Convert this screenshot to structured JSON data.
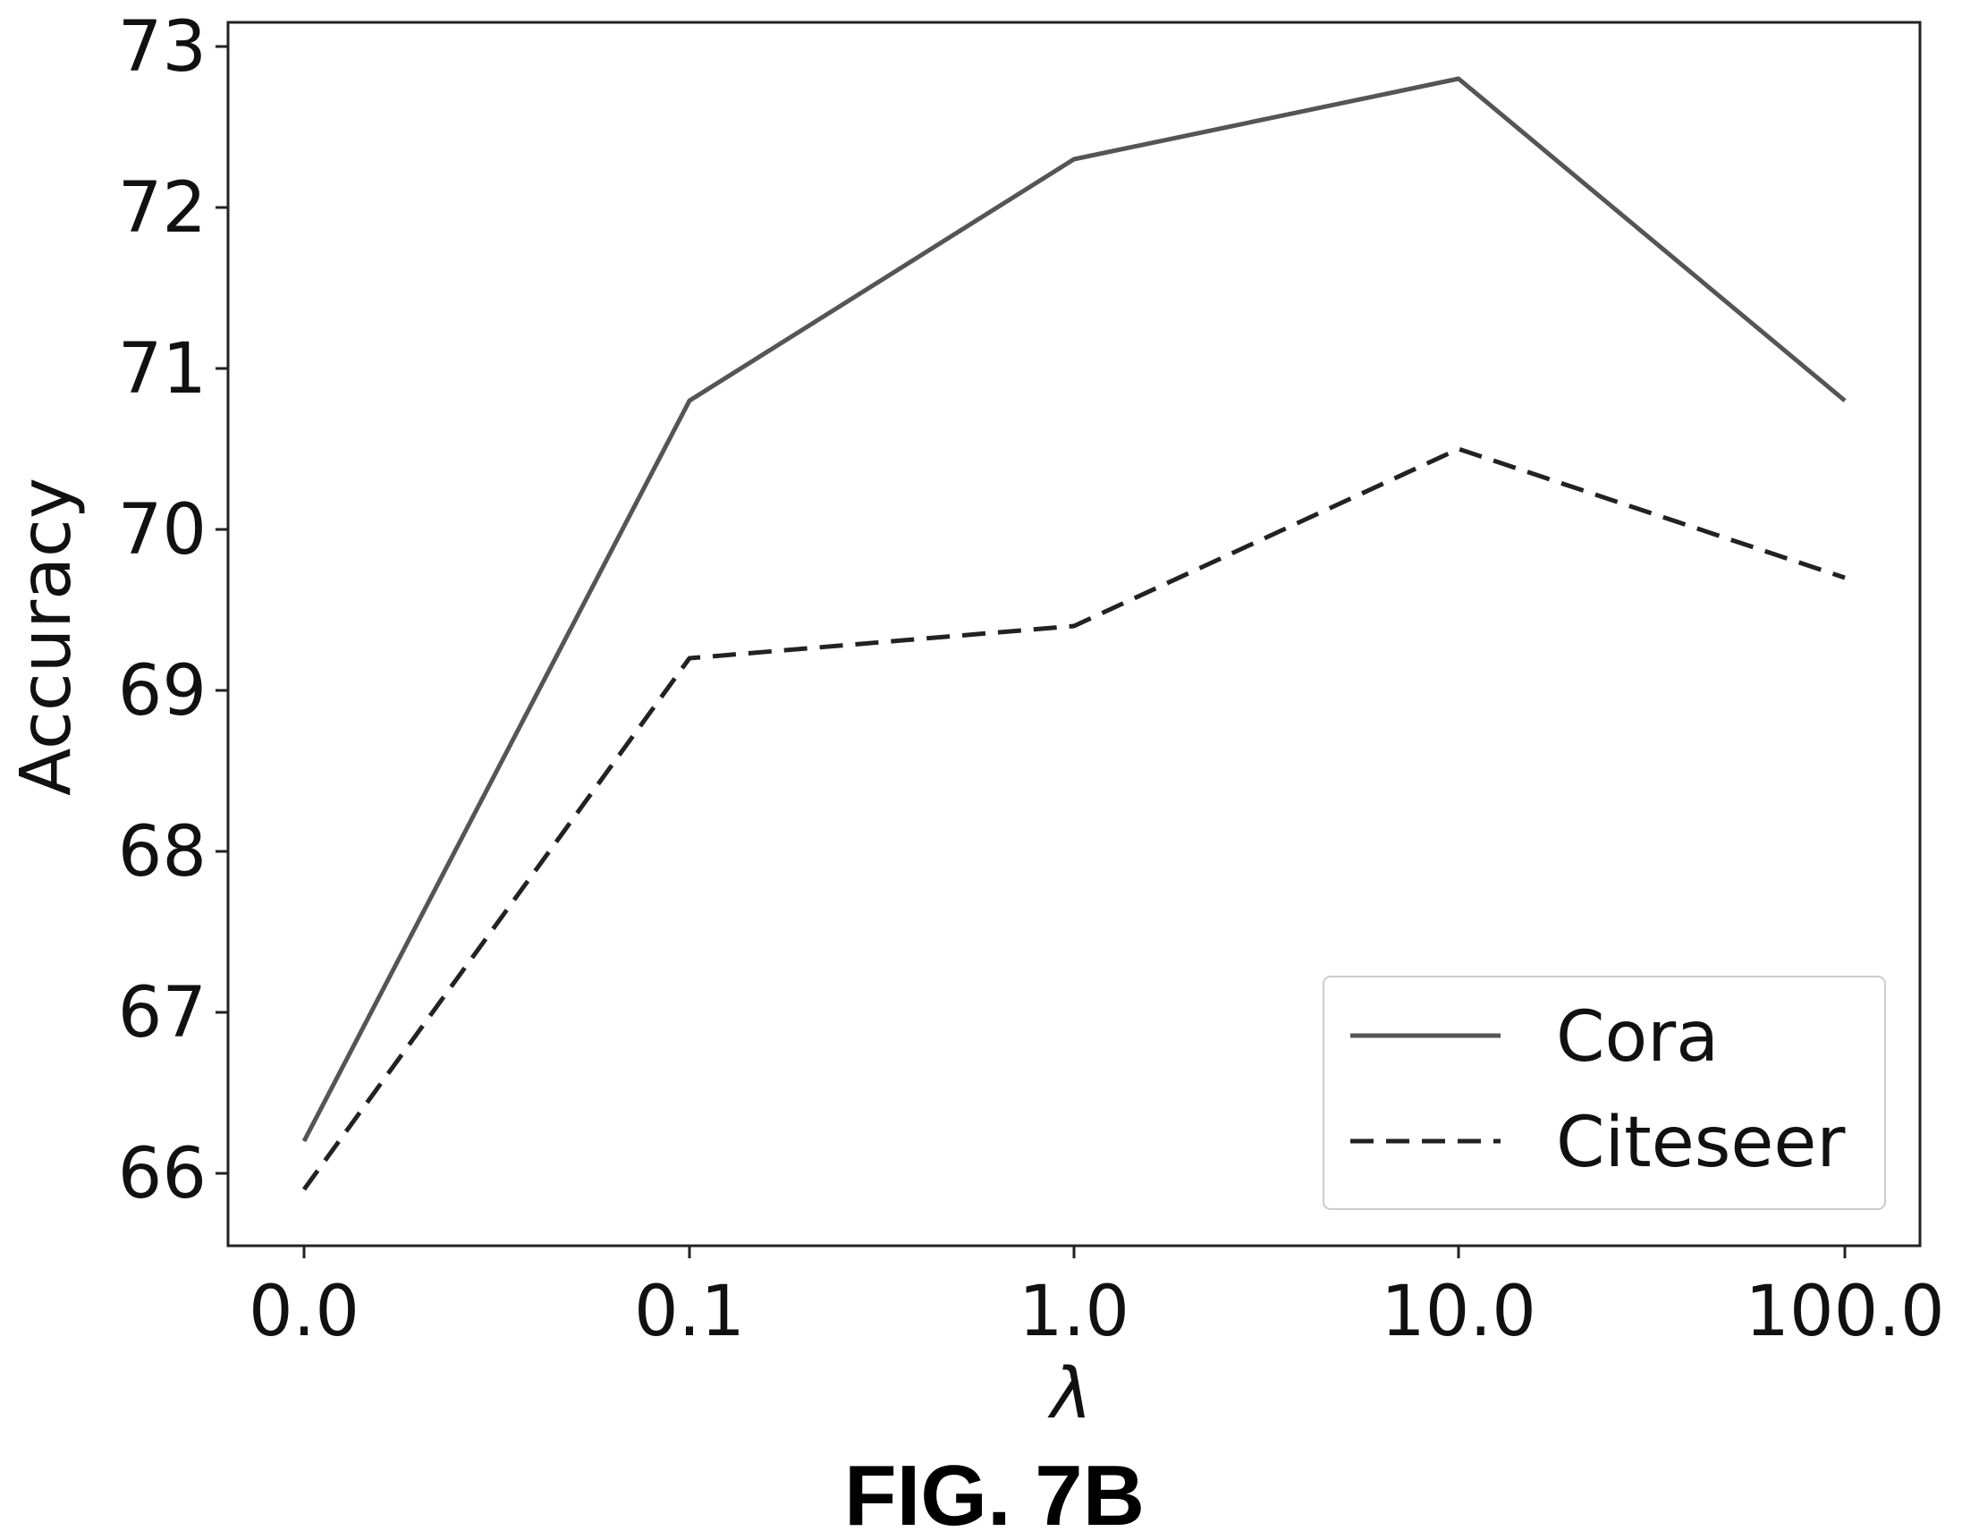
{
  "chart_data": {
    "type": "line",
    "categories": [
      "0.0",
      "0.1",
      "1.0",
      "10.0",
      "100.0"
    ],
    "xlabel": "λ",
    "ylabel": "Accuracy",
    "ylim": [
      65.55,
      73.15
    ],
    "yticks": [
      66,
      67,
      68,
      69,
      70,
      71,
      72,
      73
    ],
    "grid": false,
    "legend_position": "lower-right",
    "series": [
      {
        "name": "Cora",
        "style": "solid",
        "color": "#555555",
        "values": [
          66.2,
          70.8,
          72.3,
          72.8,
          70.8
        ]
      },
      {
        "name": "Citeseer",
        "style": "dashed",
        "color": "#222222",
        "values": [
          65.9,
          69.2,
          69.4,
          70.5,
          69.7
        ]
      }
    ]
  },
  "caption": "FIG. 7B"
}
